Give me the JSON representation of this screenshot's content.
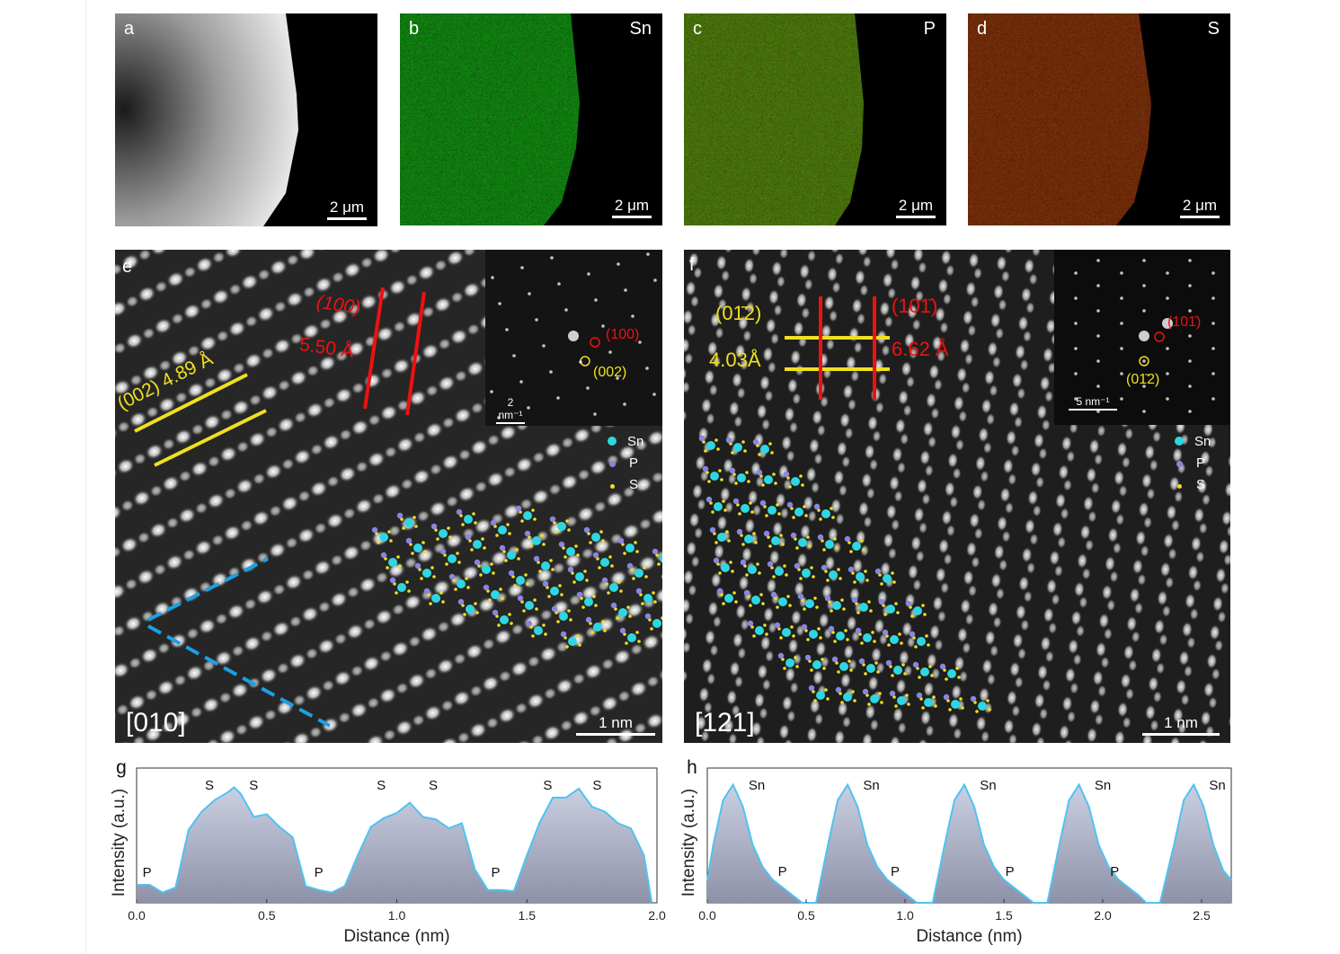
{
  "panels": {
    "a": {
      "label": "a",
      "scalebar": "2 μm"
    },
    "b": {
      "label": "b",
      "element": "Sn",
      "scalebar": "2 μm",
      "color": "#22b022"
    },
    "c": {
      "label": "c",
      "element": "P",
      "scalebar": "2 μm",
      "color": "#c4c020"
    },
    "d": {
      "label": "d",
      "element": "S",
      "scalebar": "2 μm",
      "color": "#d01414"
    },
    "e": {
      "label": "e",
      "zone_axis": "[010]",
      "scalebar": "1 nm",
      "plane_yellow": "(002) 4.89 Å",
      "plane_red_hkl": "(100)",
      "plane_red_d": "5.50 Å",
      "fft": {
        "scalebar": "2 nm⁻¹",
        "spot_red": "(100)",
        "spot_yellow": "(002)"
      },
      "legend": [
        "Sn",
        "P",
        "S"
      ]
    },
    "f": {
      "label": "f",
      "zone_axis": "[121]",
      "scalebar": "1 nm",
      "plane_yellow_hkl": "(01̄2)",
      "plane_yellow_d": "4.03Å",
      "plane_red_hkl": "(101̄)",
      "plane_red_d": "6.62 Å",
      "fft": {
        "scalebar": "5 nm⁻¹",
        "spot_red": "(101̄)",
        "spot_yellow": "(01̄2)"
      },
      "legend": [
        "Sn",
        "P",
        "S"
      ]
    }
  },
  "colors": {
    "Sn": "#2fd6e0",
    "P": "#8a86e0",
    "S": "#f0e020",
    "profile_line": "#4fc3f0",
    "profile_fill_top": "#cbcfe2",
    "profile_fill_bottom": "#8d92a8"
  },
  "chart_data": [
    {
      "panel": "g",
      "type": "area",
      "xlabel": "Distance (nm)",
      "ylabel": "Intensity (a.u.)",
      "xlim": [
        0,
        2.0
      ],
      "xticks": [
        "0.0",
        "0.5",
        "1.0",
        "1.5",
        "2.0"
      ],
      "x": [
        0,
        0.05,
        0.1,
        0.15,
        0.2,
        0.25,
        0.3,
        0.35,
        0.375,
        0.4,
        0.45,
        0.5,
        0.55,
        0.6,
        0.65,
        0.7,
        0.75,
        0.8,
        0.85,
        0.9,
        0.95,
        1.0,
        1.05,
        1.1,
        1.15,
        1.2,
        1.25,
        1.3,
        1.35,
        1.4,
        1.45,
        1.5,
        1.55,
        1.6,
        1.65,
        1.7,
        1.75,
        1.8,
        1.85,
        1.9,
        1.95,
        1.98
      ],
      "y": [
        0.14,
        0.14,
        0.08,
        0.12,
        0.57,
        0.71,
        0.8,
        0.86,
        0.9,
        0.85,
        0.67,
        0.69,
        0.59,
        0.51,
        0.13,
        0.1,
        0.08,
        0.13,
        0.37,
        0.59,
        0.66,
        0.7,
        0.78,
        0.67,
        0.65,
        0.58,
        0.62,
        0.26,
        0.1,
        0.1,
        0.09,
        0.37,
        0.63,
        0.82,
        0.82,
        0.89,
        0.75,
        0.71,
        0.62,
        0.58,
        0.37,
        0.0
      ],
      "annotations": [
        {
          "text": "P",
          "x": 0.04
        },
        {
          "text": "S",
          "x": 0.28
        },
        {
          "text": "S",
          "x": 0.45
        },
        {
          "text": "P",
          "x": 0.7
        },
        {
          "text": "S",
          "x": 0.94
        },
        {
          "text": "S",
          "x": 1.14
        },
        {
          "text": "P",
          "x": 1.38
        },
        {
          "text": "S",
          "x": 1.58
        },
        {
          "text": "S",
          "x": 1.77
        }
      ]
    },
    {
      "panel": "h",
      "type": "area",
      "xlabel": "Distance (nm)",
      "ylabel": "Intensity (a.u.)",
      "xlim": [
        0,
        2.65
      ],
      "xticks": [
        "0.0",
        "0.5",
        "1.0",
        "1.5",
        "2.0",
        "2.5"
      ],
      "x": [
        0,
        0.03,
        0.08,
        0.13,
        0.18,
        0.23,
        0.28,
        0.33,
        0.38,
        0.43,
        0.48,
        0.55,
        0.61,
        0.66,
        0.71,
        0.76,
        0.81,
        0.86,
        0.91,
        0.96,
        1.01,
        1.06,
        1.14,
        1.2,
        1.25,
        1.3,
        1.35,
        1.4,
        1.45,
        1.5,
        1.55,
        1.6,
        1.65,
        1.72,
        1.78,
        1.83,
        1.88,
        1.93,
        1.98,
        2.03,
        2.08,
        2.13,
        2.18,
        2.22,
        2.29,
        2.36,
        2.41,
        2.46,
        2.51,
        2.56,
        2.61,
        2.65
      ],
      "y": [
        0.17,
        0.45,
        0.8,
        0.92,
        0.75,
        0.45,
        0.28,
        0.18,
        0.12,
        0.06,
        0.0,
        0.0,
        0.45,
        0.8,
        0.92,
        0.75,
        0.45,
        0.28,
        0.18,
        0.12,
        0.06,
        0.0,
        0.0,
        0.45,
        0.8,
        0.92,
        0.75,
        0.45,
        0.28,
        0.18,
        0.12,
        0.06,
        0.0,
        0.0,
        0.45,
        0.8,
        0.92,
        0.75,
        0.45,
        0.28,
        0.18,
        0.12,
        0.06,
        0.0,
        0.0,
        0.45,
        0.8,
        0.92,
        0.75,
        0.45,
        0.25,
        0.18
      ],
      "annotations": [
        {
          "text": "Sn",
          "x": 0.25
        },
        {
          "text": "P",
          "x": 0.38
        },
        {
          "text": "Sn",
          "x": 0.83
        },
        {
          "text": "P",
          "x": 0.95
        },
        {
          "text": "Sn",
          "x": 1.42
        },
        {
          "text": "P",
          "x": 1.53
        },
        {
          "text": "Sn",
          "x": 2.0
        },
        {
          "text": "P",
          "x": 2.06
        },
        {
          "text": "Sn",
          "x": 2.58
        }
      ]
    }
  ]
}
